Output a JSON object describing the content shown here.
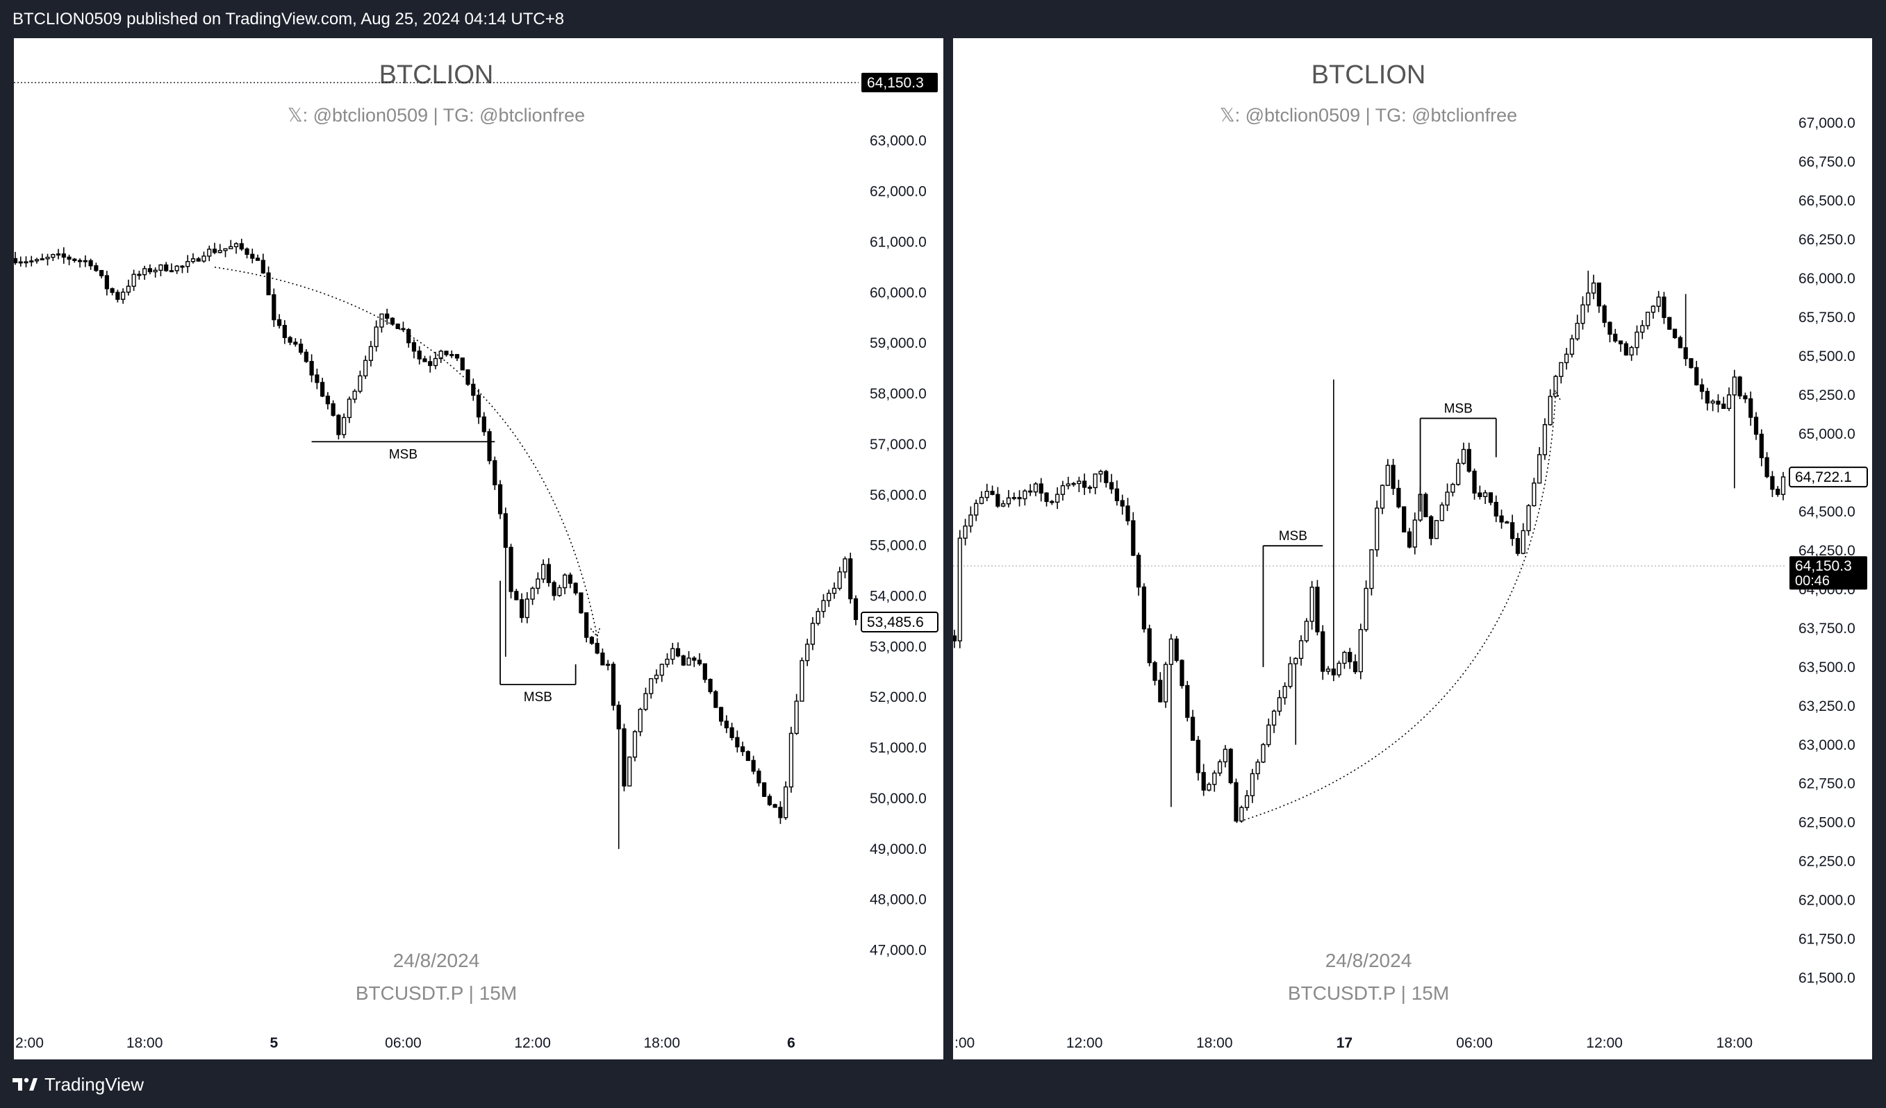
{
  "header": {
    "publish_line": "BTCLION0509 published on TradingView.com, Aug 25, 2024 04:14 UTC+8"
  },
  "footer": {
    "brand": "TradingView",
    "logo_icon": "tradingview-logo-icon"
  },
  "colors": {
    "background": "#1e222d",
    "panel": "#ffffff",
    "candle": "#000000",
    "watermark": "#7f7f7f"
  },
  "chart_data": [
    {
      "type": "candlestick",
      "watermark": {
        "title": "BTCLION",
        "handle": "𝕏: @btclion0509 | TG: @btclionfree",
        "date": "24/8/2024",
        "symbol": "BTCUSDT.P | 15M"
      },
      "ylim": [
        46500,
        64300
      ],
      "y_ticks": [
        {
          "value": 63000,
          "label": "63,000.0"
        },
        {
          "value": 62000,
          "label": "62,000.0"
        },
        {
          "value": 61000,
          "label": "61,000.0"
        },
        {
          "value": 60000,
          "label": "60,000.0"
        },
        {
          "value": 59000,
          "label": "59,000.0"
        },
        {
          "value": 58000,
          "label": "58,000.0"
        },
        {
          "value": 57000,
          "label": "57,000.0"
        },
        {
          "value": 56000,
          "label": "56,000.0"
        },
        {
          "value": 55000,
          "label": "55,000.0"
        },
        {
          "value": 54000,
          "label": "54,000.0"
        },
        {
          "value": 53000,
          "label": "53,000.0"
        },
        {
          "value": 52000,
          "label": "52,000.0"
        },
        {
          "value": 51000,
          "label": "51,000.0"
        },
        {
          "value": 50000,
          "label": "50,000.0"
        },
        {
          "value": 49000,
          "label": "49,000.0"
        },
        {
          "value": 48000,
          "label": "48,000.0"
        },
        {
          "value": 47000,
          "label": "47,000.0"
        }
      ],
      "x_ticks": [
        {
          "t": 0,
          "label": "2:00",
          "bold": false
        },
        {
          "t": 24,
          "label": "18:00",
          "bold": false
        },
        {
          "t": 48,
          "label": "5",
          "bold": true
        },
        {
          "t": 72,
          "label": "06:00",
          "bold": false
        },
        {
          "t": 96,
          "label": "12:00",
          "bold": false
        },
        {
          "t": 120,
          "label": "18:00",
          "bold": false
        },
        {
          "t": 144,
          "label": "6",
          "bold": true
        }
      ],
      "t_range": [
        0,
        156
      ],
      "price_tags": [
        {
          "value": 64150.3,
          "label": "64,150.3",
          "style": "filled",
          "line": "dotted"
        },
        {
          "value": 53485.6,
          "label": "53,485.6",
          "style": "outlined",
          "line": "none"
        }
      ],
      "keypoints": [
        [
          0,
          60670
        ],
        [
          4,
          60600
        ],
        [
          7,
          60700
        ],
        [
          10,
          60680
        ],
        [
          14,
          60600
        ],
        [
          17,
          60100
        ],
        [
          19,
          59900
        ],
        [
          22,
          60300
        ],
        [
          25,
          60450
        ],
        [
          28,
          60500
        ],
        [
          31,
          60500
        ],
        [
          33,
          60600
        ],
        [
          35,
          60800
        ],
        [
          38,
          60850
        ],
        [
          41,
          60900
        ],
        [
          44,
          60750
        ],
        [
          46,
          60450
        ],
        [
          48,
          59400
        ],
        [
          50,
          59150
        ],
        [
          53,
          58800
        ],
        [
          55,
          58400
        ],
        [
          58,
          57800
        ],
        [
          60,
          57200
        ],
        [
          62,
          57850
        ],
        [
          64,
          58400
        ],
        [
          66,
          59000
        ],
        [
          68,
          59500
        ],
        [
          70,
          59450
        ],
        [
          72,
          59250
        ],
        [
          75,
          58700
        ],
        [
          77,
          58600
        ],
        [
          79,
          58900
        ],
        [
          81,
          58750
        ],
        [
          83,
          58500
        ],
        [
          85,
          57900
        ],
        [
          87,
          57200
        ],
        [
          89,
          56200
        ],
        [
          90,
          55600
        ],
        [
          91,
          54900
        ],
        [
          92,
          54100
        ],
        [
          94,
          53600
        ],
        [
          96,
          54200
        ],
        [
          98,
          54600
        ],
        [
          100,
          53950
        ],
        [
          102,
          54400
        ],
        [
          104,
          54000
        ],
        [
          106,
          53200
        ],
        [
          108,
          52800
        ],
        [
          110,
          52600
        ],
        [
          111,
          51900
        ],
        [
          112,
          51300
        ],
        [
          113,
          50200
        ],
        [
          114,
          50800
        ],
        [
          115,
          51300
        ],
        [
          116,
          51800
        ],
        [
          118,
          52300
        ],
        [
          120,
          52600
        ],
        [
          122,
          52900
        ],
        [
          124,
          52600
        ],
        [
          126,
          52800
        ],
        [
          128,
          52400
        ],
        [
          130,
          51800
        ],
        [
          132,
          51400
        ],
        [
          134,
          51000
        ],
        [
          136,
          50700
        ],
        [
          138,
          50300
        ],
        [
          140,
          49900
        ],
        [
          142,
          49700
        ],
        [
          143,
          50300
        ],
        [
          144,
          51300
        ],
        [
          145,
          52000
        ],
        [
          146,
          52700
        ],
        [
          148,
          53500
        ],
        [
          150,
          53950
        ],
        [
          152,
          54100
        ],
        [
          154,
          54700
        ],
        [
          155,
          54000
        ],
        [
          156,
          53485
        ]
      ],
      "spikes": [
        {
          "t": 112,
          "low": 49000
        },
        {
          "t": 91,
          "low": 52800
        }
      ],
      "annotations": [
        {
          "type": "msb",
          "label": "MSB",
          "t1": 55,
          "t2": 89,
          "price": 57050
        },
        {
          "type": "msb",
          "label": "MSB",
          "t1": 90,
          "t2": 104,
          "price": 52250
        },
        {
          "type": "msb_tick",
          "t": 90,
          "from": 54300,
          "to": 52250
        },
        {
          "type": "msb_tick",
          "t": 104,
          "from": 52650,
          "to": 52250
        },
        {
          "type": "arrow",
          "from": [
            37,
            60500
          ],
          "ctrl": [
            96,
            59600
          ],
          "to": [
            108,
            53200
          ]
        }
      ]
    },
    {
      "type": "candlestick",
      "watermark": {
        "title": "BTCLION",
        "handle": "𝕏: @btclion0509 | TG: @btclionfree",
        "date": "24/8/2024",
        "symbol": "BTCUSDT.P | 15M"
      },
      "ylim": [
        61400,
        67300
      ],
      "y_ticks": [
        {
          "value": 67000,
          "label": "67,000.0"
        },
        {
          "value": 66750,
          "label": "66,750.0"
        },
        {
          "value": 66500,
          "label": "66,500.0"
        },
        {
          "value": 66250,
          "label": "66,250.0"
        },
        {
          "value": 66000,
          "label": "66,000.0"
        },
        {
          "value": 65750,
          "label": "65,750.0"
        },
        {
          "value": 65500,
          "label": "65,500.0"
        },
        {
          "value": 65250,
          "label": "65,250.0"
        },
        {
          "value": 65000,
          "label": "65,000.0"
        },
        {
          "value": 64750,
          "label": "64,750.0"
        },
        {
          "value": 64500,
          "label": "64,500.0"
        },
        {
          "value": 64250,
          "label": "64,250.0"
        },
        {
          "value": 64000,
          "label": "64,000.0"
        },
        {
          "value": 63750,
          "label": "63,750.0"
        },
        {
          "value": 63500,
          "label": "63,500.0"
        },
        {
          "value": 63250,
          "label": "63,250.0"
        },
        {
          "value": 63000,
          "label": "63,000.0"
        },
        {
          "value": 62750,
          "label": "62,750.0"
        },
        {
          "value": 62500,
          "label": "62,500.0"
        },
        {
          "value": 62250,
          "label": "62,250.0"
        },
        {
          "value": 62000,
          "label": "62,000.0"
        },
        {
          "value": 61750,
          "label": "61,750.0"
        },
        {
          "value": 61500,
          "label": "61,500.0"
        }
      ],
      "x_ticks": [
        {
          "t": 0,
          "label": ":00",
          "bold": false
        },
        {
          "t": 24,
          "label": "12:00",
          "bold": false
        },
        {
          "t": 48,
          "label": "18:00",
          "bold": false
        },
        {
          "t": 72,
          "label": "17",
          "bold": true
        },
        {
          "t": 96,
          "label": "06:00",
          "bold": false
        },
        {
          "t": 120,
          "label": "12:00",
          "bold": false
        },
        {
          "t": 144,
          "label": "18:00",
          "bold": false
        }
      ],
      "t_range": [
        0,
        153
      ],
      "price_tags": [
        {
          "value": 64722.1,
          "label": "64,722.1",
          "style": "outlined",
          "line": "none"
        },
        {
          "value": 64150.3,
          "label": "64,150.3",
          "sub": "00:46",
          "style": "filled",
          "line": "dotted"
        }
      ],
      "keypoints": [
        [
          0,
          63700
        ],
        [
          1,
          64300
        ],
        [
          3,
          64500
        ],
        [
          6,
          64600
        ],
        [
          9,
          64550
        ],
        [
          12,
          64600
        ],
        [
          15,
          64650
        ],
        [
          18,
          64550
        ],
        [
          21,
          64700
        ],
        [
          24,
          64650
        ],
        [
          27,
          64750
        ],
        [
          30,
          64600
        ],
        [
          32,
          64450
        ],
        [
          34,
          64000
        ],
        [
          36,
          63500
        ],
        [
          38,
          63300
        ],
        [
          40,
          63700
        ],
        [
          42,
          63400
        ],
        [
          44,
          63000
        ],
        [
          46,
          62700
        ],
        [
          48,
          62800
        ],
        [
          50,
          63000
        ],
        [
          52,
          62500
        ],
        [
          54,
          62700
        ],
        [
          56,
          62900
        ],
        [
          58,
          63100
        ],
        [
          60,
          63300
        ],
        [
          62,
          63500
        ],
        [
          64,
          63650
        ],
        [
          66,
          64000
        ],
        [
          68,
          63500
        ],
        [
          70,
          63450
        ],
        [
          72,
          63600
        ],
        [
          74,
          63500
        ],
        [
          76,
          64000
        ],
        [
          78,
          64500
        ],
        [
          80,
          64800
        ],
        [
          82,
          64500
        ],
        [
          84,
          64300
        ],
        [
          86,
          64600
        ],
        [
          88,
          64300
        ],
        [
          90,
          64550
        ],
        [
          92,
          64700
        ],
        [
          94,
          64900
        ],
        [
          96,
          64600
        ],
        [
          98,
          64650
        ],
        [
          100,
          64500
        ],
        [
          102,
          64400
        ],
        [
          104,
          64250
        ],
        [
          106,
          64550
        ],
        [
          108,
          64850
        ],
        [
          110,
          65250
        ],
        [
          112,
          65450
        ],
        [
          114,
          65600
        ],
        [
          116,
          65850
        ],
        [
          118,
          65950
        ],
        [
          120,
          65700
        ],
        [
          122,
          65600
        ],
        [
          124,
          65500
        ],
        [
          126,
          65650
        ],
        [
          128,
          65800
        ],
        [
          130,
          65900
        ],
        [
          132,
          65650
        ],
        [
          134,
          65550
        ],
        [
          136,
          65400
        ],
        [
          138,
          65250
        ],
        [
          140,
          65200
        ],
        [
          142,
          65150
        ],
        [
          144,
          65350
        ],
        [
          146,
          65200
        ],
        [
          148,
          65000
        ],
        [
          150,
          64700
        ],
        [
          152,
          64600
        ],
        [
          153,
          64722
        ]
      ],
      "spikes": [
        {
          "t": 40,
          "low": 62600
        },
        {
          "t": 63,
          "low": 63000
        },
        {
          "t": 47,
          "low": 62700
        },
        {
          "t": 70,
          "high": 65350
        },
        {
          "t": 117,
          "high": 66050
        },
        {
          "t": 144,
          "low": 64650
        },
        {
          "t": 135,
          "high": 65900
        }
      ],
      "annotations": [
        {
          "type": "msb",
          "label": "MSB",
          "t1": 57,
          "t2": 68,
          "price": 64280
        },
        {
          "type": "msb",
          "label": "MSB",
          "t1": 86,
          "t2": 100,
          "price": 65100
        },
        {
          "type": "msb_tick",
          "t": 57,
          "from": 63500,
          "to": 64280
        },
        {
          "type": "msb_tick",
          "t": 86,
          "from": 64500,
          "to": 65100
        },
        {
          "type": "msb_tick",
          "t": 100,
          "from": 64850,
          "to": 65100
        },
        {
          "type": "arrow",
          "from": [
            52,
            62500
          ],
          "ctrl": [
            108,
            63100
          ],
          "to": [
            111,
            65280
          ]
        }
      ]
    }
  ]
}
